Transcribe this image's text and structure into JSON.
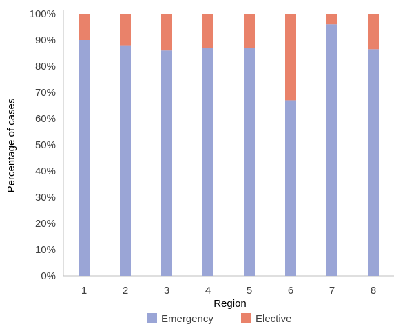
{
  "chart_data": {
    "type": "bar",
    "stacked": true,
    "title": "",
    "xlabel": "Region",
    "ylabel": "Percentage of cases",
    "categories": [
      "1",
      "2",
      "3",
      "4",
      "5",
      "6",
      "7",
      "8"
    ],
    "series": [
      {
        "name": "Emergency",
        "color": "#9AA5D6",
        "values": [
          90,
          88,
          86,
          87,
          87,
          67,
          96,
          86.5
        ]
      },
      {
        "name": "Elective",
        "color": "#E9826A",
        "values": [
          10,
          12,
          14,
          13,
          13,
          33,
          4,
          13.5
        ]
      }
    ],
    "ylim": [
      0,
      100
    ],
    "yticks": [
      "0%",
      "10%",
      "20%",
      "30%",
      "40%",
      "50%",
      "60%",
      "70%",
      "80%",
      "90%",
      "100%"
    ],
    "grid": false,
    "legend_position": "bottom"
  }
}
